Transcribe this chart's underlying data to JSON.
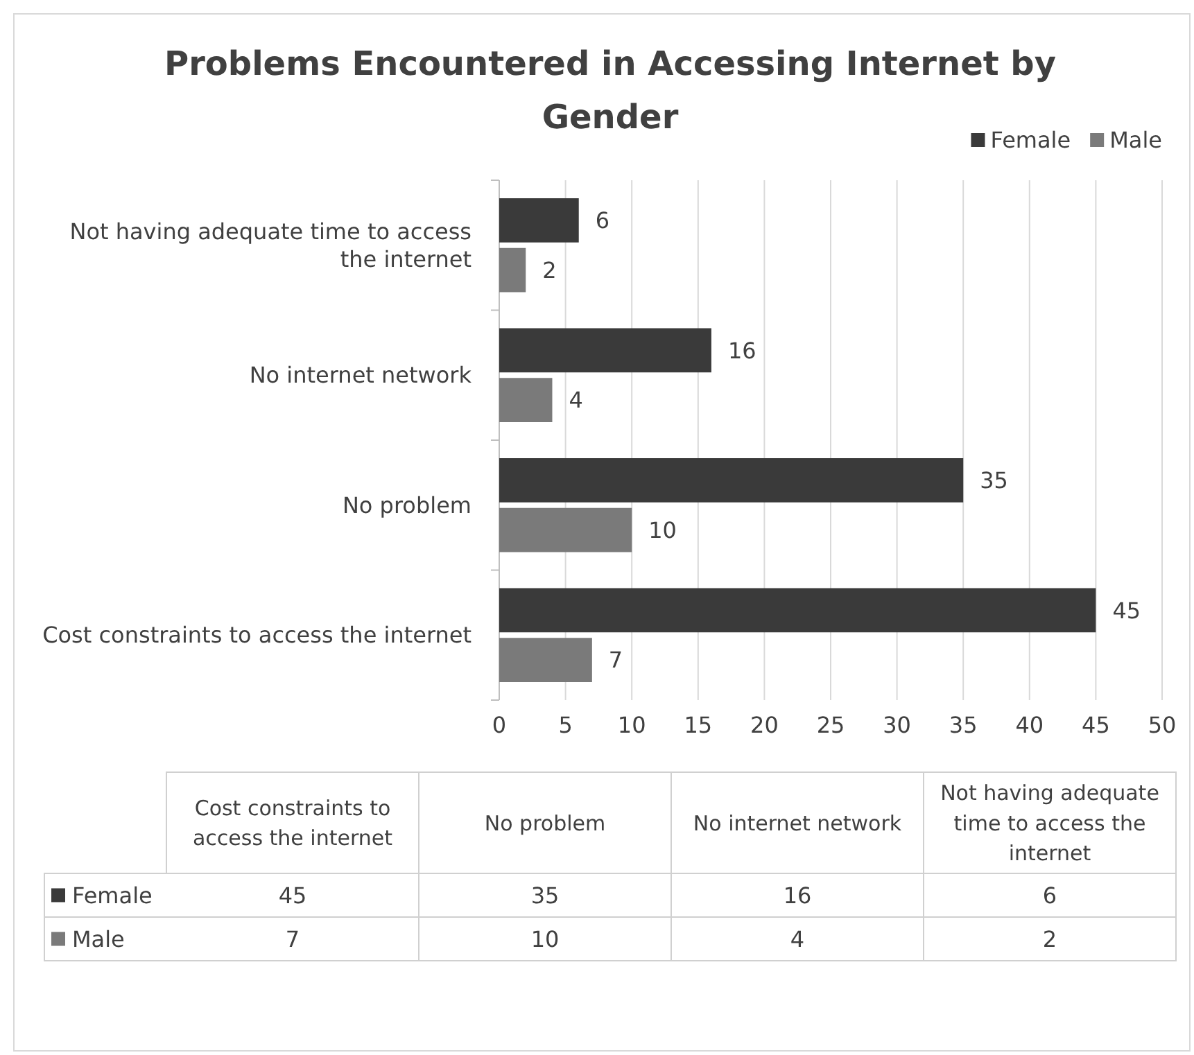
{
  "chart_data": [
    {
      "type": "bar",
      "orientation": "horizontal",
      "title": "Problems Encountered in Accessing Internet by Gender",
      "categories": [
        "Not having adequate time to access the internet",
        "No internet network",
        "No problem",
        "Cost constraints to access the internet"
      ],
      "series": [
        {
          "name": "Female",
          "color": "#3a3a3a",
          "values": [
            6,
            16,
            35,
            45
          ]
        },
        {
          "name": "Male",
          "color": "#7a7a7a",
          "values": [
            2,
            4,
            10,
            7
          ]
        }
      ],
      "xlim": [
        0,
        50
      ],
      "xticks": [
        0,
        5,
        10,
        15,
        20,
        25,
        30,
        35,
        40,
        45,
        50
      ],
      "grid": "x",
      "legend": "top right",
      "data_labels": true
    },
    {
      "type": "heatmap",
      "categories": [
        "Cost constraints to access the internet",
        "No problem",
        "No internet network",
        "Not having adequate time to access the internet"
      ],
      "y_categories": [
        "Female",
        "Male"
      ],
      "cells": [
        [
          45,
          35,
          16,
          6
        ],
        [
          7,
          10,
          4,
          2
        ]
      ],
      "data_labels": true
    }
  ]
}
